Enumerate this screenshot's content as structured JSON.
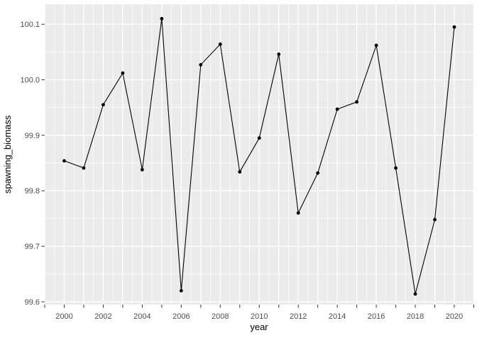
{
  "chart_data": {
    "type": "line",
    "title": "",
    "xlabel": "year",
    "ylabel": "spawning_biomass",
    "x": [
      2000,
      2001,
      2002,
      2003,
      2004,
      2005,
      2006,
      2007,
      2008,
      2009,
      2010,
      2011,
      2012,
      2013,
      2014,
      2015,
      2016,
      2017,
      2018,
      2019,
      2020
    ],
    "values": [
      99.854,
      99.841,
      99.955,
      100.012,
      99.838,
      100.11,
      99.62,
      100.027,
      100.064,
      99.834,
      99.895,
      100.046,
      99.76,
      99.832,
      99.947,
      99.96,
      100.062,
      99.841,
      99.614,
      99.748,
      100.095
    ],
    "series_name": "spawning_biomass",
    "xlim": [
      1999,
      2021
    ],
    "ylim": [
      99.595,
      100.136
    ],
    "x_ticks": [
      1999,
      2000,
      2001,
      2002,
      2003,
      2004,
      2005,
      2006,
      2007,
      2008,
      2009,
      2010,
      2011,
      2012,
      2013,
      2014,
      2015,
      2016,
      2017,
      2018,
      2019,
      2020,
      2021
    ],
    "x_tick_labels": [
      {
        "v": 2000,
        "t": "2000"
      },
      {
        "v": 2002,
        "t": "2002"
      },
      {
        "v": 2004,
        "t": "2004"
      },
      {
        "v": 2006,
        "t": "2006"
      },
      {
        "v": 2008,
        "t": "2008"
      },
      {
        "v": 2010,
        "t": "2010"
      },
      {
        "v": 2012,
        "t": "2012"
      },
      {
        "v": 2014,
        "t": "2014"
      },
      {
        "v": 2016,
        "t": "2016"
      },
      {
        "v": 2018,
        "t": "2018"
      },
      {
        "v": 2020,
        "t": "2020"
      }
    ],
    "y_ticks": [
      {
        "v": 99.6,
        "t": "99.6"
      },
      {
        "v": 99.7,
        "t": "99.7"
      },
      {
        "v": 99.8,
        "t": "99.8"
      },
      {
        "v": 99.9,
        "t": "99.9"
      },
      {
        "v": 100.0,
        "t": "100.0"
      },
      {
        "v": 100.1,
        "t": "100.1"
      }
    ],
    "grid": {
      "major": true,
      "minor": true
    },
    "legend": "none",
    "style": {
      "panel_bg": "#EBEBEB",
      "grid_color": "#FFFFFF",
      "line_color": "#000000",
      "point_color": "#000000",
      "tick_label_color": "#4D4D4D",
      "tick_mark_color": "#333333",
      "axis_title_color": "#000000",
      "figure_bg": "#FFFFFF"
    }
  }
}
